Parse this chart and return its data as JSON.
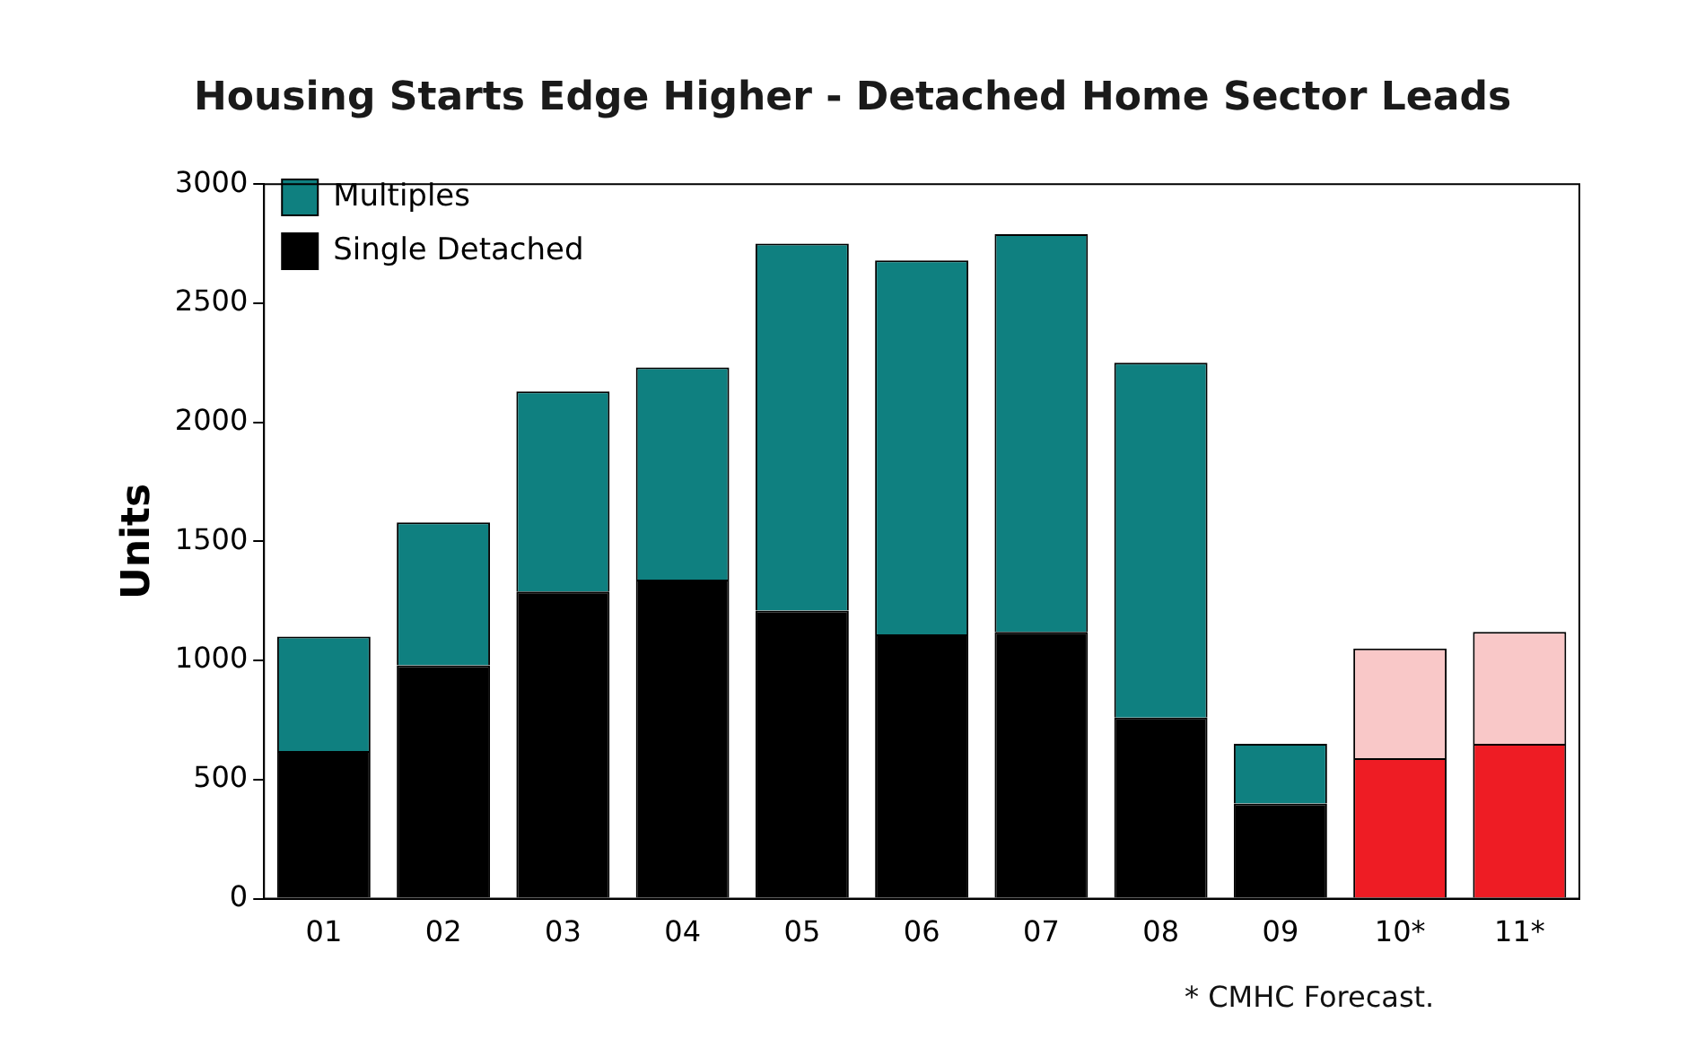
{
  "chart_data": {
    "type": "bar",
    "title": "Housing Starts Edge Higher  - Detached Home Sector Leads",
    "ylabel": "Units",
    "categories": [
      "01",
      "02",
      "03",
      "04",
      "05",
      "06",
      "07",
      "08",
      "09",
      "10*",
      "11*"
    ],
    "stacked": true,
    "series": [
      {
        "name": "Single Detached",
        "color": "#000000",
        "colors": [
          "#000000",
          "#000000",
          "#000000",
          "#000000",
          "#000000",
          "#000000",
          "#000000",
          "#000000",
          "#000000",
          "#ee1c24",
          "#ee1c24"
        ],
        "values": [
          620,
          980,
          1290,
          1340,
          1210,
          1110,
          1120,
          760,
          400,
          590,
          650
        ]
      },
      {
        "name": "Multiples",
        "color": "#0f8080",
        "colors": [
          "#0f8080",
          "#0f8080",
          "#0f8080",
          "#0f8080",
          "#0f8080",
          "#0f8080",
          "#0f8080",
          "#0f8080",
          "#0f8080",
          "#f9c8c8",
          "#f9c8c8"
        ],
        "values": [
          480,
          600,
          840,
          890,
          1540,
          1570,
          1670,
          1490,
          250,
          460,
          470
        ]
      }
    ],
    "ylim": [
      0,
      3000
    ],
    "yticks": [
      0,
      500,
      1000,
      1500,
      2000,
      2500,
      3000
    ],
    "grid": false,
    "legend": "top left",
    "annotations": [
      "* CMHC Forecast."
    ]
  }
}
